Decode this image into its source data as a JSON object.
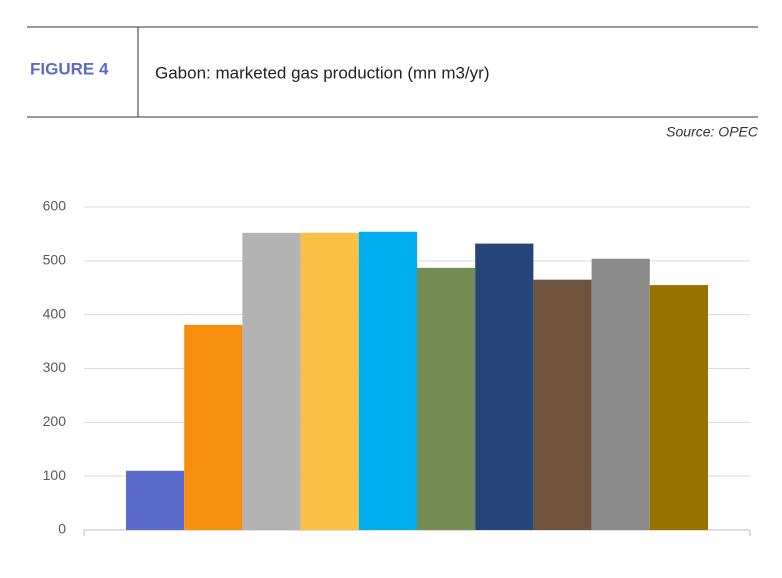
{
  "chart_data": {
    "type": "bar",
    "figure_label": "FIGURE 4",
    "title": "Gabon: marketed gas production (mn m3/yr)",
    "source": "Source: OPEC",
    "categories": [
      null,
      null,
      null,
      null,
      null,
      null,
      null,
      null,
      null,
      null
    ],
    "values": [
      110,
      381,
      552,
      552,
      554,
      487,
      532,
      465,
      504,
      455
    ],
    "colors": [
      "#5b6bcc",
      "#f7900e",
      "#b3b3b3",
      "#f8c146",
      "#00aeef",
      "#768c55",
      "#264478",
      "#70533d",
      "#8a8b8a",
      "#997300"
    ],
    "ylim": [
      0,
      600
    ],
    "yticks": [
      0,
      100,
      200,
      300,
      400,
      500,
      600
    ],
    "grid": true
  }
}
